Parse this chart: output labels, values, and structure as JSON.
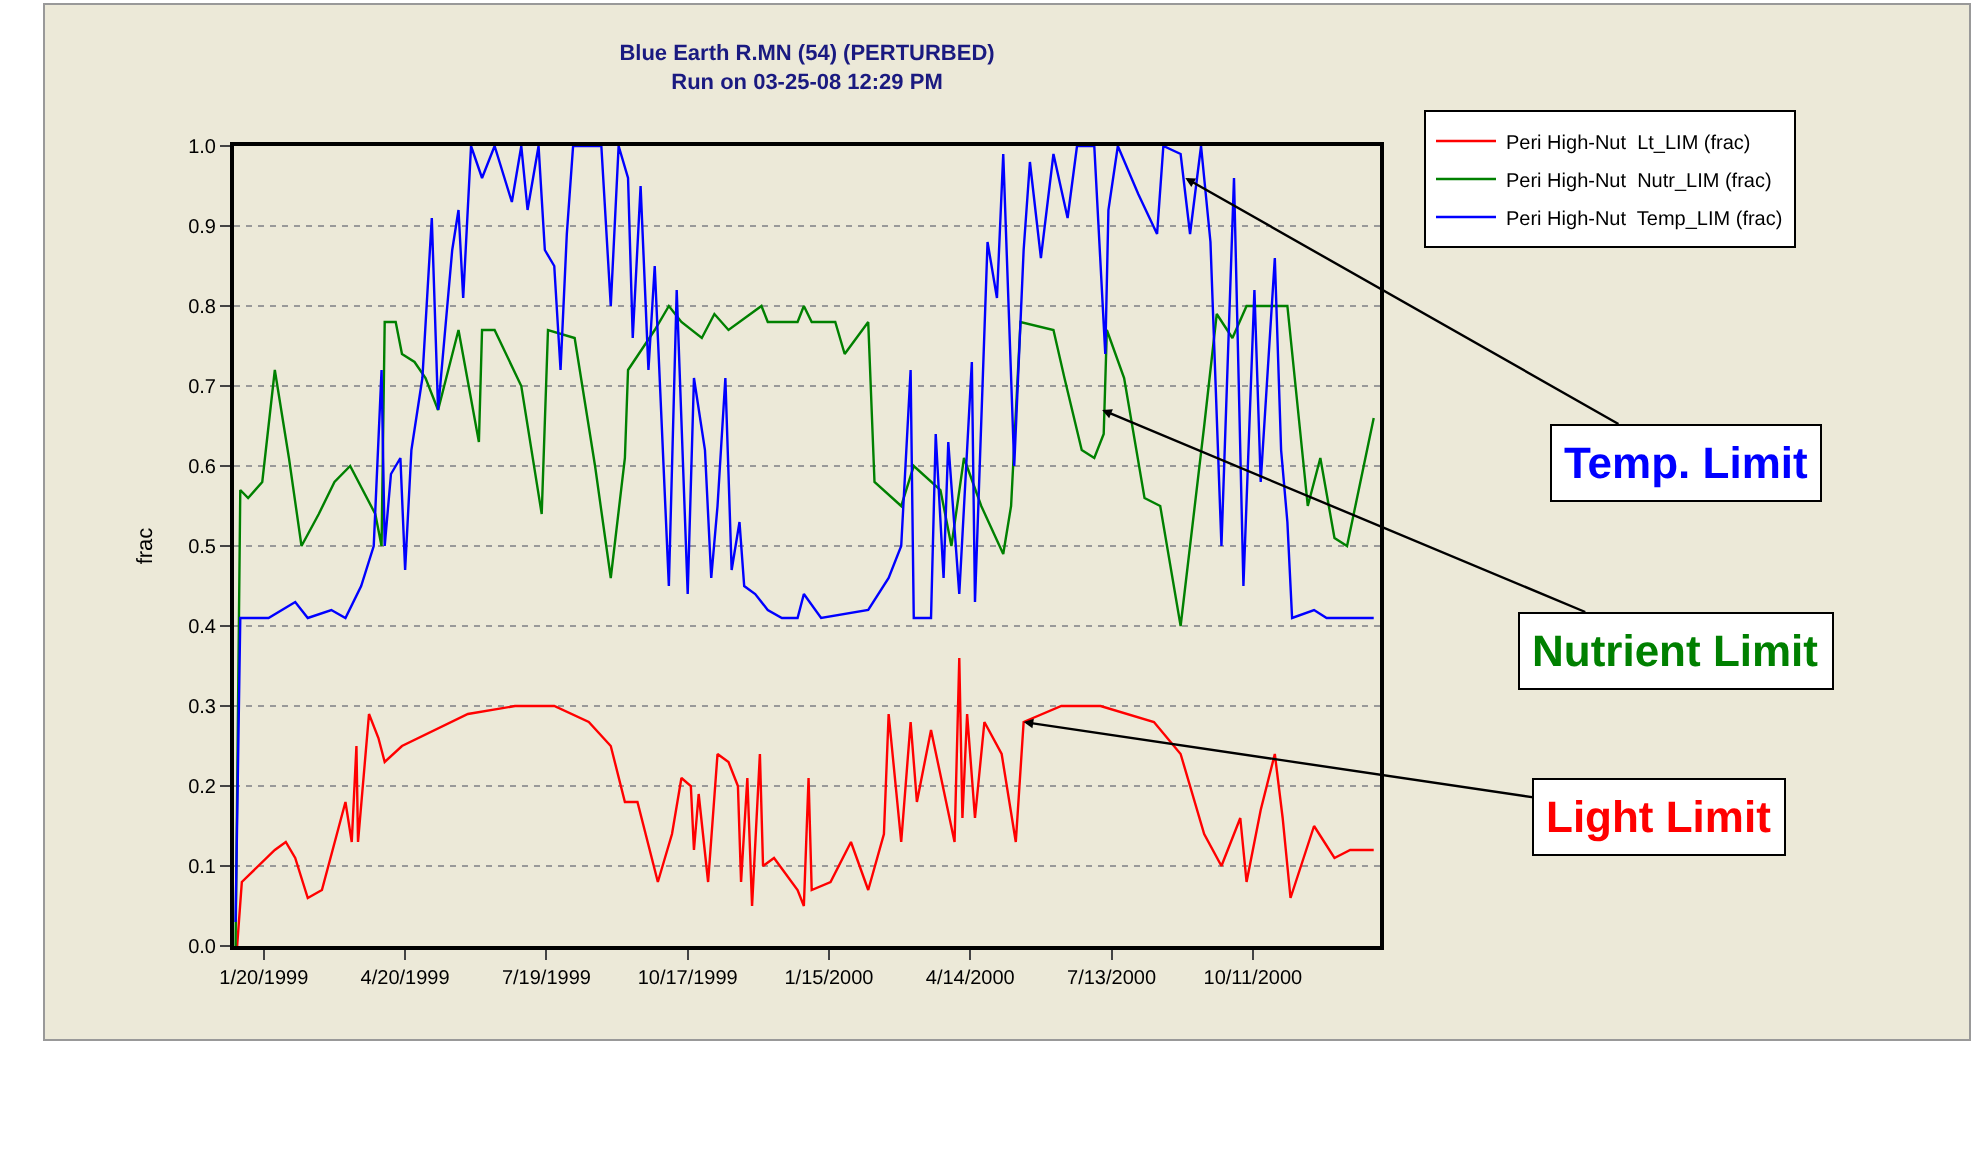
{
  "chart_data": {
    "type": "line",
    "title": "Blue Earth R.MN (54) (PERTURBED)",
    "subtitle": "Run on 03-25-08 12:29 PM",
    "ylabel": "frac",
    "xlim": [
      "1999-01-01",
      "2000-12-31"
    ],
    "xticks": [
      {
        "value": "1999-01-20",
        "label": "1/20/1999"
      },
      {
        "value": "1999-04-20",
        "label": "4/20/1999"
      },
      {
        "value": "1999-07-19",
        "label": "7/19/1999"
      },
      {
        "value": "1999-10-17",
        "label": "10/17/1999"
      },
      {
        "value": "2000-01-15",
        "label": "1/15/2000"
      },
      {
        "value": "2000-04-14",
        "label": "4/14/2000"
      },
      {
        "value": "2000-07-13",
        "label": "7/13/2000"
      },
      {
        "value": "2000-10-11",
        "label": "10/11/2000"
      }
    ],
    "ylim": [
      0,
      1.0
    ],
    "yticks": [
      {
        "value": 0,
        "label": "0.0"
      },
      {
        "value": 0.1,
        "label": "0.1"
      },
      {
        "value": 0.2,
        "label": "0.2"
      },
      {
        "value": 0.3,
        "label": "0.3"
      },
      {
        "value": 0.4,
        "label": "0.4"
      },
      {
        "value": 0.5,
        "label": "0.5"
      },
      {
        "value": 0.6,
        "label": "0.6"
      },
      {
        "value": 0.7,
        "label": "0.7"
      },
      {
        "value": 0.8,
        "label": "0.8"
      },
      {
        "value": 0.9,
        "label": "0.9"
      },
      {
        "value": 1.0,
        "label": "1.0"
      }
    ],
    "grid": "y",
    "legend": "top right",
    "marker": "none",
    "line_style": "solid",
    "series": [
      {
        "name": "Peri High-Nut  Lt_LIM (frac)",
        "color": "#ff0000",
        "x": [
          "1999-01-03",
          "1999-01-06",
          "1999-01-27",
          "1999-02-03",
          "1999-02-09",
          "1999-02-17",
          "1999-02-26",
          "1999-03-13",
          "1999-03-17",
          "1999-03-20",
          "1999-03-21",
          "1999-03-28",
          "1999-04-03",
          "1999-04-07",
          "1999-04-18",
          "1999-05-30",
          "1999-06-29",
          "1999-07-24",
          "1999-08-15",
          "1999-08-29",
          "1999-09-07",
          "1999-09-15",
          "1999-09-28",
          "1999-10-07",
          "1999-10-13",
          "1999-10-19",
          "1999-10-21",
          "1999-10-24",
          "1999-10-30",
          "1999-11-05",
          "1999-11-12",
          "1999-11-18",
          "1999-11-20",
          "1999-11-24",
          "1999-11-27",
          "1999-12-02",
          "1999-12-04",
          "1999-12-11",
          "1999-12-26",
          "1999-12-30",
          "2000-01-02",
          "2000-01-04",
          "2000-01-16",
          "2000-01-29",
          "2000-02-09",
          "2000-02-19",
          "2000-02-22",
          "2000-03-01",
          "2000-03-07",
          "2000-03-11",
          "2000-03-20",
          "2000-04-04",
          "2000-04-07",
          "2000-04-09",
          "2000-04-12",
          "2000-04-17",
          "2000-04-23",
          "2000-05-04",
          "2000-05-13",
          "2000-05-18",
          "2000-06-11",
          "2000-07-06",
          "2000-08-09",
          "2000-08-26",
          "2000-09-10",
          "2000-09-21",
          "2000-10-03",
          "2000-10-07",
          "2000-10-16",
          "2000-10-25",
          "2000-10-30",
          "2000-11-04",
          "2000-11-19",
          "2000-12-02",
          "2000-12-12",
          "2000-12-27"
        ],
        "values": [
          0.0,
          0.08,
          0.12,
          0.13,
          0.11,
          0.06,
          0.07,
          0.18,
          0.13,
          0.25,
          0.13,
          0.29,
          0.26,
          0.23,
          0.25,
          0.29,
          0.3,
          0.3,
          0.28,
          0.25,
          0.18,
          0.18,
          0.08,
          0.14,
          0.21,
          0.2,
          0.12,
          0.19,
          0.08,
          0.24,
          0.23,
          0.2,
          0.08,
          0.21,
          0.05,
          0.24,
          0.1,
          0.11,
          0.07,
          0.05,
          0.21,
          0.07,
          0.08,
          0.13,
          0.07,
          0.14,
          0.29,
          0.13,
          0.28,
          0.18,
          0.27,
          0.13,
          0.36,
          0.16,
          0.29,
          0.16,
          0.28,
          0.24,
          0.13,
          0.28,
          0.3,
          0.3,
          0.28,
          0.24,
          0.14,
          0.1,
          0.16,
          0.08,
          0.17,
          0.24,
          0.16,
          0.06,
          0.15,
          0.11,
          0.12,
          0.12
        ]
      },
      {
        "name": "Peri High-Nut  Nutr_LIM (frac)",
        "color": "#008000",
        "x": [
          "1999-01-02",
          "1999-01-05",
          "1999-01-10",
          "1999-01-19",
          "1999-01-27",
          "1999-02-05",
          "1999-02-13",
          "1999-02-24",
          "1999-03-06",
          "1999-03-16",
          "1999-04-01",
          "1999-04-05",
          "1999-04-07",
          "1999-04-14",
          "1999-04-18",
          "1999-04-26",
          "1999-05-03",
          "1999-05-11",
          "1999-05-24",
          "1999-06-06",
          "1999-06-08",
          "1999-06-16",
          "1999-07-03",
          "1999-07-16",
          "1999-07-20",
          "1999-08-06",
          "1999-08-19",
          "1999-08-29",
          "1999-09-07",
          "1999-09-09",
          "1999-09-26",
          "1999-10-05",
          "1999-10-13",
          "1999-10-26",
          "1999-11-03",
          "1999-11-12",
          "1999-12-03",
          "1999-12-07",
          "1999-12-26",
          "1999-12-30",
          "2000-01-04",
          "2000-01-19",
          "2000-01-25",
          "2000-02-09",
          "2000-02-13",
          "2000-03-01",
          "2000-03-09",
          "2000-03-26",
          "2000-04-02",
          "2000-04-10",
          "2000-04-21",
          "2000-05-05",
          "2000-05-10",
          "2000-05-16",
          "2000-06-06",
          "2000-06-13",
          "2000-06-24",
          "2000-07-02",
          "2000-07-08",
          "2000-07-10",
          "2000-07-21",
          "2000-08-03",
          "2000-08-13",
          "2000-08-26",
          "2000-09-10",
          "2000-09-18",
          "2000-09-28",
          "2000-10-07",
          "2000-11-02",
          "2000-11-15",
          "2000-11-23",
          "2000-12-02",
          "2000-12-10",
          "2000-12-27"
        ],
        "values": [
          0.0,
          0.57,
          0.56,
          0.58,
          0.72,
          0.61,
          0.5,
          0.54,
          0.58,
          0.6,
          0.54,
          0.5,
          0.78,
          0.78,
          0.74,
          0.73,
          0.71,
          0.67,
          0.77,
          0.63,
          0.77,
          0.77,
          0.7,
          0.54,
          0.77,
          0.76,
          0.6,
          0.46,
          0.61,
          0.72,
          0.77,
          0.8,
          0.78,
          0.76,
          0.79,
          0.77,
          0.8,
          0.78,
          0.78,
          0.8,
          0.78,
          0.78,
          0.74,
          0.78,
          0.58,
          0.55,
          0.6,
          0.57,
          0.5,
          0.61,
          0.55,
          0.49,
          0.55,
          0.78,
          0.77,
          0.71,
          0.62,
          0.61,
          0.64,
          0.77,
          0.71,
          0.56,
          0.55,
          0.4,
          0.65,
          0.79,
          0.76,
          0.8,
          0.8,
          0.55,
          0.61,
          0.51,
          0.5,
          0.66
        ]
      },
      {
        "name": "Peri High-Nut  Temp_LIM (frac)",
        "color": "#0000ff",
        "x": [
          "1999-01-02",
          "1999-01-05",
          "1999-01-23",
          "1999-02-09",
          "1999-02-17",
          "1999-03-04",
          "1999-03-13",
          "1999-03-23",
          "1999-03-31",
          "1999-04-05",
          "1999-04-07",
          "1999-04-11",
          "1999-04-17",
          "1999-04-20",
          "1999-04-24",
          "1999-05-01",
          "1999-05-07",
          "1999-05-11",
          "1999-05-20",
          "1999-05-24",
          "1999-05-27",
          "1999-06-01",
          "1999-06-08",
          "1999-06-16",
          "1999-06-27",
          "1999-07-03",
          "1999-07-07",
          "1999-07-14",
          "1999-07-18",
          "1999-07-24",
          "1999-07-28",
          "1999-08-01",
          "1999-08-05",
          "1999-08-23",
          "1999-08-29",
          "1999-09-03",
          "1999-09-09",
          "1999-09-12",
          "1999-09-17",
          "1999-09-22",
          "1999-09-26",
          "1999-10-05",
          "1999-10-10",
          "1999-10-17",
          "1999-10-21",
          "1999-10-28",
          "1999-11-01",
          "1999-11-05",
          "1999-11-10",
          "1999-11-14",
          "1999-11-19",
          "1999-11-22",
          "1999-11-29",
          "1999-12-07",
          "1999-12-16",
          "1999-12-26",
          "1999-12-30",
          "2000-01-10",
          "2000-02-09",
          "2000-02-22",
          "2000-03-01",
          "2000-03-07",
          "2000-03-09",
          "2000-03-20",
          "2000-03-23",
          "2000-03-28",
          "2000-03-31",
          "2000-04-07",
          "2000-04-15",
          "2000-04-17",
          "2000-04-25",
          "2000-05-01",
          "2000-05-05",
          "2000-05-12",
          "2000-05-18",
          "2000-05-22",
          "2000-05-29",
          "2000-06-06",
          "2000-06-15",
          "2000-06-21",
          "2000-07-02",
          "2000-07-09",
          "2000-07-11",
          "2000-07-17",
          "2000-07-30",
          "2000-08-11",
          "2000-08-15",
          "2000-08-26",
          "2000-09-01",
          "2000-09-08",
          "2000-09-14",
          "2000-09-21",
          "2000-09-29",
          "2000-10-05",
          "2000-10-12",
          "2000-10-16",
          "2000-10-25",
          "2000-10-29",
          "2000-11-02",
          "2000-11-05",
          "2000-11-19",
          "2000-11-27",
          "2000-12-27"
        ],
        "values": [
          0.03,
          0.41,
          0.41,
          0.43,
          0.41,
          0.42,
          0.41,
          0.45,
          0.5,
          0.72,
          0.5,
          0.59,
          0.61,
          0.47,
          0.62,
          0.71,
          0.91,
          0.67,
          0.87,
          0.92,
          0.81,
          1.0,
          0.96,
          1.0,
          0.93,
          1.0,
          0.92,
          1.0,
          0.87,
          0.85,
          0.72,
          0.89,
          1.0,
          1.0,
          0.8,
          1.0,
          0.96,
          0.76,
          0.95,
          0.72,
          0.85,
          0.45,
          0.82,
          0.44,
          0.71,
          0.62,
          0.46,
          0.55,
          0.71,
          0.47,
          0.53,
          0.45,
          0.44,
          0.42,
          0.41,
          0.41,
          0.44,
          0.41,
          0.42,
          0.46,
          0.5,
          0.72,
          0.41,
          0.41,
          0.64,
          0.46,
          0.63,
          0.44,
          0.73,
          0.43,
          0.88,
          0.81,
          0.99,
          0.6,
          0.87,
          0.98,
          0.86,
          0.99,
          0.91,
          1.0,
          1.0,
          0.74,
          0.92,
          1.0,
          0.94,
          0.89,
          1.0,
          0.99,
          0.89,
          1.0,
          0.88,
          0.5,
          0.96,
          0.45,
          0.82,
          0.58,
          0.86,
          0.62,
          0.53,
          0.41,
          0.42,
          0.41,
          0.41
        ]
      }
    ],
    "annotations": [
      {
        "text": "Temp. Limit",
        "x": "2000-08-29",
        "y": 0.96
      },
      {
        "text": "Nutrient Limit",
        "x": "2000-07-07",
        "y": 0.67
      },
      {
        "text": "Light Limit",
        "x": "2000-05-18",
        "y": 0.28
      }
    ]
  }
}
